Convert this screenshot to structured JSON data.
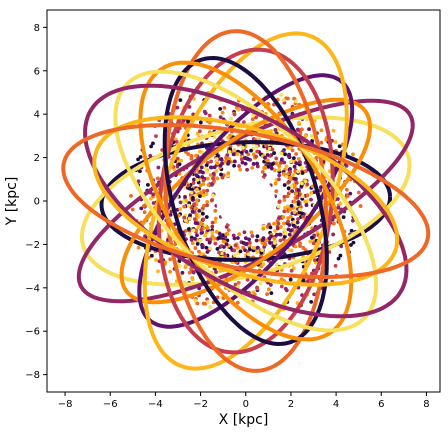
{
  "chart_data": {
    "type": "scatter",
    "title": "",
    "xlabel": "X [kpc]",
    "ylabel": "Y [kpc]",
    "xlim": [
      -8.8,
      8.6
    ],
    "ylim": [
      -8.8,
      8.8
    ],
    "xticks": [
      -8,
      -6,
      -4,
      -2,
      0,
      2,
      4,
      6,
      8
    ],
    "yticks": [
      -8,
      -6,
      -4,
      -2,
      0,
      2,
      4,
      6,
      8
    ],
    "grid": false,
    "legend": "none",
    "colormap": "inferno",
    "colors": [
      "#1b0c41",
      "#5d126e",
      "#932667",
      "#c73e4c",
      "#ed6925",
      "#f98e09",
      "#fbb61a",
      "#f6e05c"
    ],
    "orbits": {
      "description_units": "kpc",
      "inner_radius": 1.3,
      "outer_radius": 8.2,
      "ellipse_semi_major_range": [
        6.0,
        8.3
      ],
      "ellipse_semi_minor_range": [
        2.6,
        4.0
      ],
      "count_thick_loops": 14,
      "count_dotted_inner": 60
    }
  }
}
